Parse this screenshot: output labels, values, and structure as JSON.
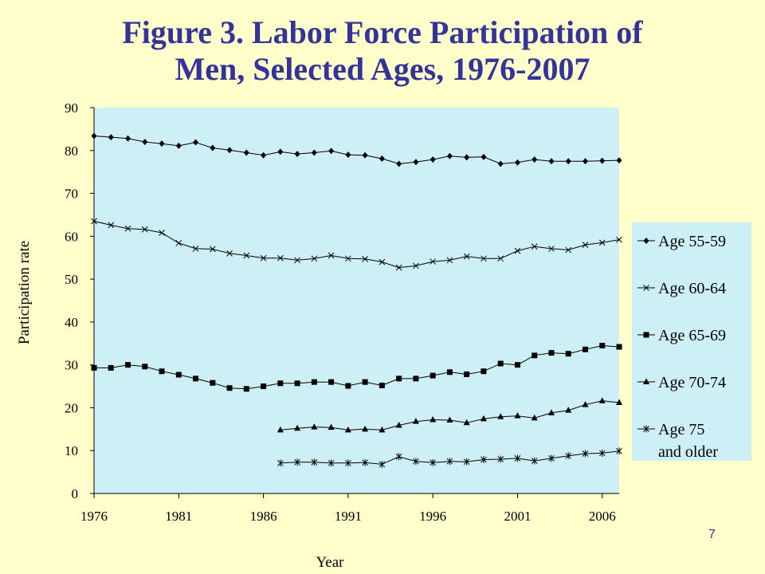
{
  "slide": {
    "title_line1": "Figure 3.  Labor Force Participation of",
    "title_line2": "Men, Selected Ages, 1976-2007",
    "page_number": "7"
  },
  "colors": {
    "background": "#ffffcc",
    "plot_area": "#ccf0f5",
    "title": "#333399",
    "series": "#000000"
  },
  "chart_data": {
    "type": "line",
    "xlabel": "Year",
    "ylabel": "Participation rate",
    "ylim": [
      0,
      90
    ],
    "xlim": [
      1976,
      2007
    ],
    "yticks": [
      0,
      10,
      20,
      30,
      40,
      50,
      60,
      70,
      80,
      90
    ],
    "xticks": [
      1976,
      1981,
      1986,
      1991,
      1996,
      2001,
      2006
    ],
    "grid": false,
    "legend_position": "right",
    "series": [
      {
        "name": "Age 55-59",
        "marker": "diamond",
        "x": [
          1976,
          1977,
          1978,
          1979,
          1980,
          1981,
          1982,
          1983,
          1984,
          1985,
          1986,
          1987,
          1988,
          1989,
          1990,
          1991,
          1992,
          1993,
          1994,
          1995,
          1996,
          1997,
          1998,
          1999,
          2000,
          2001,
          2002,
          2003,
          2004,
          2005,
          2006,
          2007
        ],
        "values": [
          83.4,
          83.1,
          82.8,
          82.0,
          81.6,
          81.1,
          81.9,
          80.6,
          80.1,
          79.5,
          78.9,
          79.7,
          79.2,
          79.5,
          79.9,
          79.0,
          78.9,
          78.1,
          76.9,
          77.3,
          77.9,
          78.7,
          78.4,
          78.5,
          76.9,
          77.2,
          77.9,
          77.5,
          77.5,
          77.5,
          77.6,
          77.7
        ]
      },
      {
        "name": "Age 60-64",
        "marker": "x",
        "x": [
          1976,
          1977,
          1978,
          1979,
          1980,
          1981,
          1982,
          1983,
          1984,
          1985,
          1986,
          1987,
          1988,
          1989,
          1990,
          1991,
          1992,
          1993,
          1994,
          1995,
          1996,
          1997,
          1998,
          1999,
          2000,
          2001,
          2002,
          2003,
          2004,
          2005,
          2006,
          2007
        ],
        "values": [
          63.5,
          62.6,
          61.8,
          61.6,
          60.8,
          58.4,
          57.1,
          57.0,
          56.0,
          55.5,
          54.9,
          54.9,
          54.4,
          54.8,
          55.5,
          54.8,
          54.7,
          54.0,
          52.7,
          53.1,
          54.1,
          54.4,
          55.3,
          54.8,
          54.8,
          56.6,
          57.6,
          57.1,
          56.8,
          58.0,
          58.5,
          59.2
        ]
      },
      {
        "name": "Age 65-69",
        "marker": "square",
        "x": [
          1976,
          1977,
          1978,
          1979,
          1980,
          1981,
          1982,
          1983,
          1984,
          1985,
          1986,
          1987,
          1988,
          1989,
          1990,
          1991,
          1992,
          1993,
          1994,
          1995,
          1996,
          1997,
          1998,
          1999,
          2000,
          2001,
          2002,
          2003,
          2004,
          2005,
          2006,
          2007
        ],
        "values": [
          29.3,
          29.3,
          30.0,
          29.6,
          28.5,
          27.7,
          26.8,
          25.8,
          24.6,
          24.4,
          25.0,
          25.7,
          25.7,
          26.0,
          26.0,
          25.1,
          26.0,
          25.2,
          26.8,
          26.8,
          27.5,
          28.3,
          27.8,
          28.5,
          30.3,
          30.0,
          32.2,
          32.8,
          32.6,
          33.6,
          34.5,
          34.2
        ]
      },
      {
        "name": "Age 70-74",
        "marker": "triangle",
        "x": [
          1987,
          1988,
          1989,
          1990,
          1991,
          1992,
          1993,
          1994,
          1995,
          1996,
          1997,
          1998,
          1999,
          2000,
          2001,
          2002,
          2003,
          2004,
          2005,
          2006,
          2007
        ],
        "values": [
          14.8,
          15.2,
          15.5,
          15.4,
          14.8,
          15.0,
          14.8,
          15.9,
          16.8,
          17.2,
          17.1,
          16.5,
          17.4,
          17.9,
          18.1,
          17.6,
          18.8,
          19.4,
          20.7,
          21.6,
          21.2
        ]
      },
      {
        "name": "Age 75 and older",
        "marker": "asterisk",
        "legend_lines": [
          "Age 75",
          "and older"
        ],
        "x": [
          1987,
          1988,
          1989,
          1990,
          1991,
          1992,
          1993,
          1994,
          1995,
          1996,
          1997,
          1998,
          1999,
          2000,
          2001,
          2002,
          2003,
          2004,
          2005,
          2006,
          2007
        ],
        "values": [
          7.1,
          7.3,
          7.3,
          7.1,
          7.1,
          7.2,
          6.8,
          8.6,
          7.5,
          7.2,
          7.5,
          7.4,
          7.9,
          8.0,
          8.2,
          7.6,
          8.2,
          8.8,
          9.3,
          9.4,
          9.9
        ]
      }
    ]
  }
}
